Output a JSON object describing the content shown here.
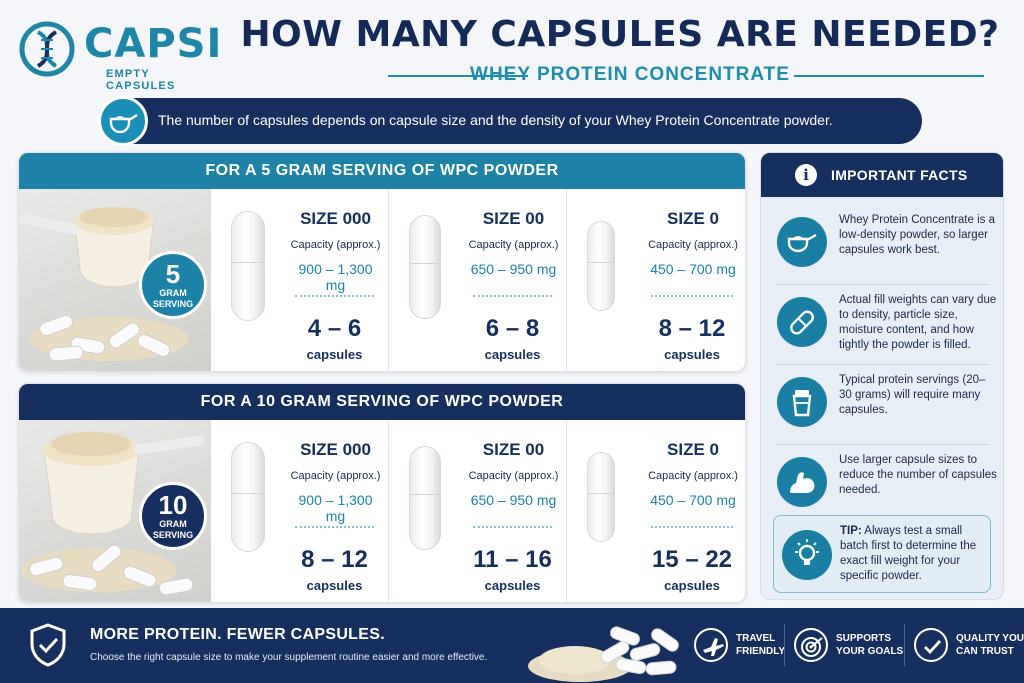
{
  "brand": {
    "name": "CAPSI",
    "tagline": "EMPTY CAPSULES",
    "color": "#1f86a8"
  },
  "title": "HOW MANY CAPSULES ARE NEEDED?",
  "subtitle": "WHEY PROTEIN CONCENTRATE",
  "intro": "The number of capsules depends on capsule size and the density of your Whey Protein Concentrate powder.",
  "panels": [
    {
      "heading": "FOR A 5 GRAM SERVING OF WPC POWDER",
      "badge_num": "5",
      "badge_label": "GRAM\nSERVING",
      "columns": [
        {
          "size": "SIZE 000",
          "capacity_label": "Capacity (approx.)",
          "range": "900 – 1,300 mg",
          "count": "4 – 6",
          "count_label": "capsules"
        },
        {
          "size": "SIZE 00",
          "capacity_label": "Capacity (approx.)",
          "range": "650 – 950 mg",
          "count": "6 – 8",
          "count_label": "capsules"
        },
        {
          "size": "SIZE 0",
          "capacity_label": "Capacity (approx.)",
          "range": "450 – 700 mg",
          "count": "8 – 12",
          "count_label": "capsules"
        }
      ]
    },
    {
      "heading": "FOR A 10 GRAM SERVING OF WPC POWDER",
      "badge_num": "10",
      "badge_label": "GRAM\nSERVING",
      "columns": [
        {
          "size": "SIZE 000",
          "capacity_label": "Capacity (approx.)",
          "range": "900 – 1,300 mg",
          "count": "8 – 12",
          "count_label": "capsules"
        },
        {
          "size": "SIZE 00",
          "capacity_label": "Capacity (approx.)",
          "range": "650 – 950 mg",
          "count": "11 – 16",
          "count_label": "capsules"
        },
        {
          "size": "SIZE 0",
          "capacity_label": "Capacity (approx.)",
          "range": "450 – 700 mg",
          "count": "15 – 22",
          "count_label": "capsules"
        }
      ]
    }
  ],
  "facts": {
    "title": "IMPORTANT FACTS",
    "items": [
      {
        "icon": "scoop-icon",
        "text": "Whey Protein Concentrate is a low-density powder, so larger capsules work best."
      },
      {
        "icon": "capsule-icon",
        "text": "Actual fill weights can vary due to density, particle size, moisture content, and how tightly the powder is filled."
      },
      {
        "icon": "shaker-icon",
        "text": "Typical protein servings (20–30 grams) will require many capsules."
      },
      {
        "icon": "flexed-arm-icon",
        "text": "Use larger capsule sizes to reduce the number of capsules needed."
      }
    ],
    "tip_label": "TIP:",
    "tip_text": "Always test a small batch first to determine the exact fill weight for your specific powder.",
    "tip_icon": "lightbulb-icon"
  },
  "footer": {
    "title": "MORE PROTEIN. FEWER CAPSULES.",
    "text": "Choose the right capsule size to make your supplement routine easier and more effective.",
    "features": [
      {
        "icon": "airplane-icon",
        "label": "TRAVEL\nFRIENDLY"
      },
      {
        "icon": "target-icon",
        "label": "SUPPORTS\nYOUR GOALS"
      },
      {
        "icon": "check-icon",
        "label": "QUALITY YOU\nCAN TRUST"
      }
    ]
  },
  "colors": {
    "navy": "#172f5e",
    "teal": "#1d82a6",
    "background": "#f4f6f9"
  }
}
